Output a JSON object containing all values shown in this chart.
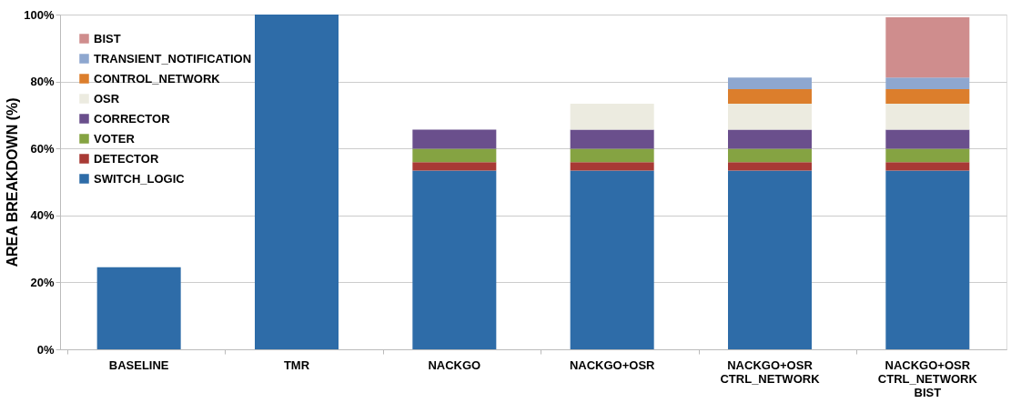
{
  "chart_data": {
    "type": "bar",
    "stacked": true,
    "ylabel": "AREA BREAKDOWN (%)",
    "categories": [
      "BASELINE",
      "TMR",
      "NACKGO",
      "NACKGO+OSR",
      "NACKGO+OSR\nCTRL_NETWORK",
      "NACKGO+OSR\nCTRL_NETWORK\nBIST"
    ],
    "series": [
      {
        "name": "SWITCH_LOGIC",
        "color": "#2e6ca8",
        "values": [
          24.5,
          100,
          53.4,
          53.4,
          53.4,
          53.4
        ]
      },
      {
        "name": "DETECTOR",
        "color": "#a83a35",
        "values": [
          null,
          null,
          2.5,
          2.5,
          2.5,
          2.5
        ]
      },
      {
        "name": "VOTER",
        "color": "#85a342",
        "values": [
          null,
          null,
          4.0,
          4.0,
          4.0,
          4.0
        ]
      },
      {
        "name": "CORRECTOR",
        "color": "#6a4f8c",
        "values": [
          null,
          null,
          5.7,
          5.7,
          5.7,
          5.7
        ]
      },
      {
        "name": "OSR",
        "color": "#ecebe0",
        "values": [
          null,
          null,
          null,
          7.8,
          7.8,
          7.8
        ]
      },
      {
        "name": "CONTROL_NETWORK",
        "color": "#dc7e2c",
        "values": [
          null,
          null,
          null,
          null,
          4.3,
          4.3
        ]
      },
      {
        "name": "TRANSIENT_NOTIFICATION",
        "color": "#8ea7cf",
        "values": [
          null,
          null,
          null,
          null,
          3.5,
          3.5
        ]
      },
      {
        "name": "BIST",
        "color": "#cf8d8d",
        "values": [
          null,
          null,
          null,
          null,
          null,
          18.0
        ]
      }
    ],
    "ylim": [
      0,
      100
    ],
    "yticks": [
      {
        "value": 0,
        "label": "0%"
      },
      {
        "value": 20,
        "label": "20%"
      },
      {
        "value": 40,
        "label": "40%"
      },
      {
        "value": 60,
        "label": "60%"
      },
      {
        "value": 80,
        "label": "80%"
      },
      {
        "value": 100,
        "label": "100%"
      }
    ],
    "grid": "y",
    "legend": "top left"
  }
}
